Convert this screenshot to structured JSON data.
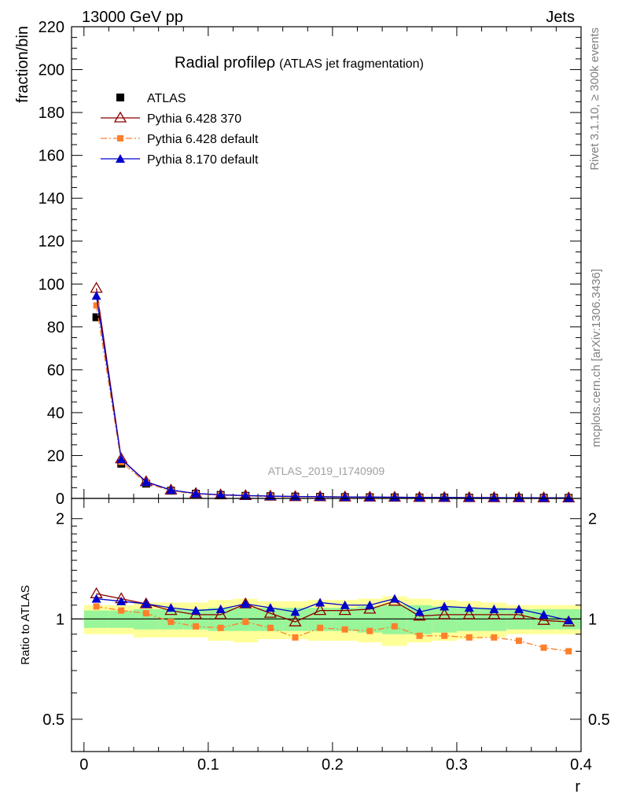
{
  "header": {
    "left": "13000 GeV pp",
    "right": "Jets"
  },
  "side": {
    "top": "Rivet 3.1.10, ≥ 300k events",
    "bottom": "mcplots.cern.ch [arXiv:1306.3436]"
  },
  "watermark": "ATLAS_2019_I1740909",
  "chart_data": {
    "type": "line",
    "title": "Radial profile",
    "title_symbol": "ρ",
    "subtitle": "(ATLAS jet fragmentation)",
    "xlabel": "r",
    "ylabel": "fraction/bin",
    "ratio_ylabel": "Ratio to ATLAS",
    "xlim": [
      -0.01,
      0.4
    ],
    "ylim": [
      0,
      220
    ],
    "ratio_ylim": [
      0.4,
      2.3
    ],
    "ratio_scale": "log",
    "x_ticks": [
      "0",
      "0.1",
      "0.2",
      "0.3",
      "0.4"
    ],
    "y_ticks": [
      "0",
      "20",
      "40",
      "60",
      "80",
      "100",
      "120",
      "140",
      "160",
      "180",
      "200",
      "220"
    ],
    "ratio_ticks": [
      "0.5",
      "1",
      "2"
    ],
    "legend_position": "top-left",
    "x": [
      0.01,
      0.03,
      0.05,
      0.07,
      0.09,
      0.11,
      0.13,
      0.15,
      0.17,
      0.19,
      0.21,
      0.23,
      0.25,
      0.27,
      0.29,
      0.31,
      0.33,
      0.35,
      0.37,
      0.39
    ],
    "ratio_band_inner": [
      0.06,
      0.06,
      0.07,
      0.07,
      0.07,
      0.08,
      0.08,
      0.08,
      0.08,
      0.08,
      0.08,
      0.09,
      0.1,
      0.1,
      0.09,
      0.08,
      0.08,
      0.07,
      0.07,
      0.07
    ],
    "ratio_band_outer": [
      0.1,
      0.1,
      0.12,
      0.12,
      0.12,
      0.14,
      0.15,
      0.13,
      0.13,
      0.14,
      0.14,
      0.15,
      0.17,
      0.15,
      0.14,
      0.13,
      0.12,
      0.1,
      0.1,
      0.1
    ],
    "series": [
      {
        "name": "ATLAS",
        "color": "#000000",
        "marker": "square",
        "line": "none",
        "values": [
          84.5,
          16.2,
          6.9,
          3.6,
          2.2,
          1.6,
          1.2,
          1.0,
          0.85,
          0.72,
          0.62,
          0.55,
          0.48,
          0.43,
          0.39,
          0.35,
          0.32,
          0.29,
          0.27,
          0.25
        ],
        "ratio": [
          1,
          1,
          1,
          1,
          1,
          1,
          1,
          1,
          1,
          1,
          1,
          1,
          1,
          1,
          1,
          1,
          1,
          1,
          1,
          1
        ]
      },
      {
        "name": "Pythia 6.428 370",
        "color": "#8b0000",
        "marker": "triangle-open",
        "line": "solid",
        "values": [
          98.0,
          18.5,
          7.8,
          3.9,
          2.3,
          1.65,
          1.32,
          1.05,
          0.84,
          0.77,
          0.66,
          0.59,
          0.54,
          0.45,
          0.41,
          0.37,
          0.34,
          0.31,
          0.27,
          0.25
        ],
        "ratio": [
          1.19,
          1.15,
          1.11,
          1.06,
          1.03,
          1.03,
          1.11,
          1.04,
          0.98,
          1.06,
          1.06,
          1.07,
          1.13,
          1.02,
          1.03,
          1.03,
          1.03,
          1.03,
          0.99,
          0.98
        ]
      },
      {
        "name": "Pythia 6.428 default",
        "color": "#ff7f2a",
        "marker": "square-small",
        "line": "dashdot",
        "values": [
          90.0,
          17.0,
          7.2,
          3.5,
          2.1,
          1.5,
          1.15,
          0.93,
          0.75,
          0.68,
          0.58,
          0.51,
          0.46,
          0.39,
          0.35,
          0.31,
          0.28,
          0.25,
          0.22,
          0.2
        ],
        "ratio": [
          1.09,
          1.06,
          1.04,
          0.98,
          0.95,
          0.94,
          0.98,
          0.94,
          0.88,
          0.94,
          0.93,
          0.92,
          0.95,
          0.89,
          0.89,
          0.88,
          0.88,
          0.86,
          0.82,
          0.8
        ]
      },
      {
        "name": "Pythia 8.170 default",
        "color": "#0000cc",
        "marker": "triangle",
        "line": "solid",
        "values": [
          94.5,
          18.3,
          7.7,
          3.9,
          2.3,
          1.7,
          1.3,
          1.07,
          0.89,
          0.81,
          0.69,
          0.61,
          0.56,
          0.46,
          0.43,
          0.38,
          0.35,
          0.32,
          0.28,
          0.25
        ],
        "ratio": [
          1.15,
          1.13,
          1.11,
          1.08,
          1.06,
          1.07,
          1.11,
          1.08,
          1.05,
          1.12,
          1.1,
          1.1,
          1.15,
          1.05,
          1.09,
          1.08,
          1.07,
          1.07,
          1.03,
          0.99
        ]
      }
    ]
  }
}
